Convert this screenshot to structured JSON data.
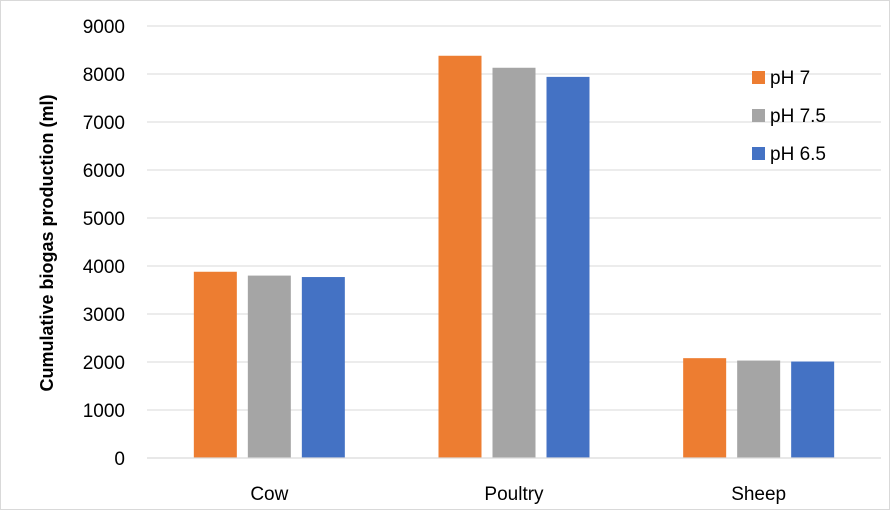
{
  "chart_data": {
    "type": "bar",
    "title": "",
    "xlabel": "",
    "ylabel": "Cumulative biogas production (ml)",
    "categories": [
      "Cow",
      "Poultry",
      "Sheep"
    ],
    "series": [
      {
        "name": "pH 7",
        "values": [
          3880,
          8380,
          2080
        ],
        "color": "#ED7D31"
      },
      {
        "name": "pH 7.5",
        "values": [
          3800,
          8130,
          2030
        ],
        "color": "#A5A5A5"
      },
      {
        "name": "pH 6.5",
        "values": [
          3770,
          7940,
          2010
        ],
        "color": "#4472C4"
      }
    ],
    "ylim": [
      0,
      9000
    ],
    "yticks": [
      "0",
      "1000",
      "2000",
      "3000",
      "4000",
      "5000",
      "6000",
      "7000",
      "8000",
      "9000"
    ],
    "grid": true,
    "legend_position": "top-right",
    "gridline_color": "#D9D9D9"
  }
}
